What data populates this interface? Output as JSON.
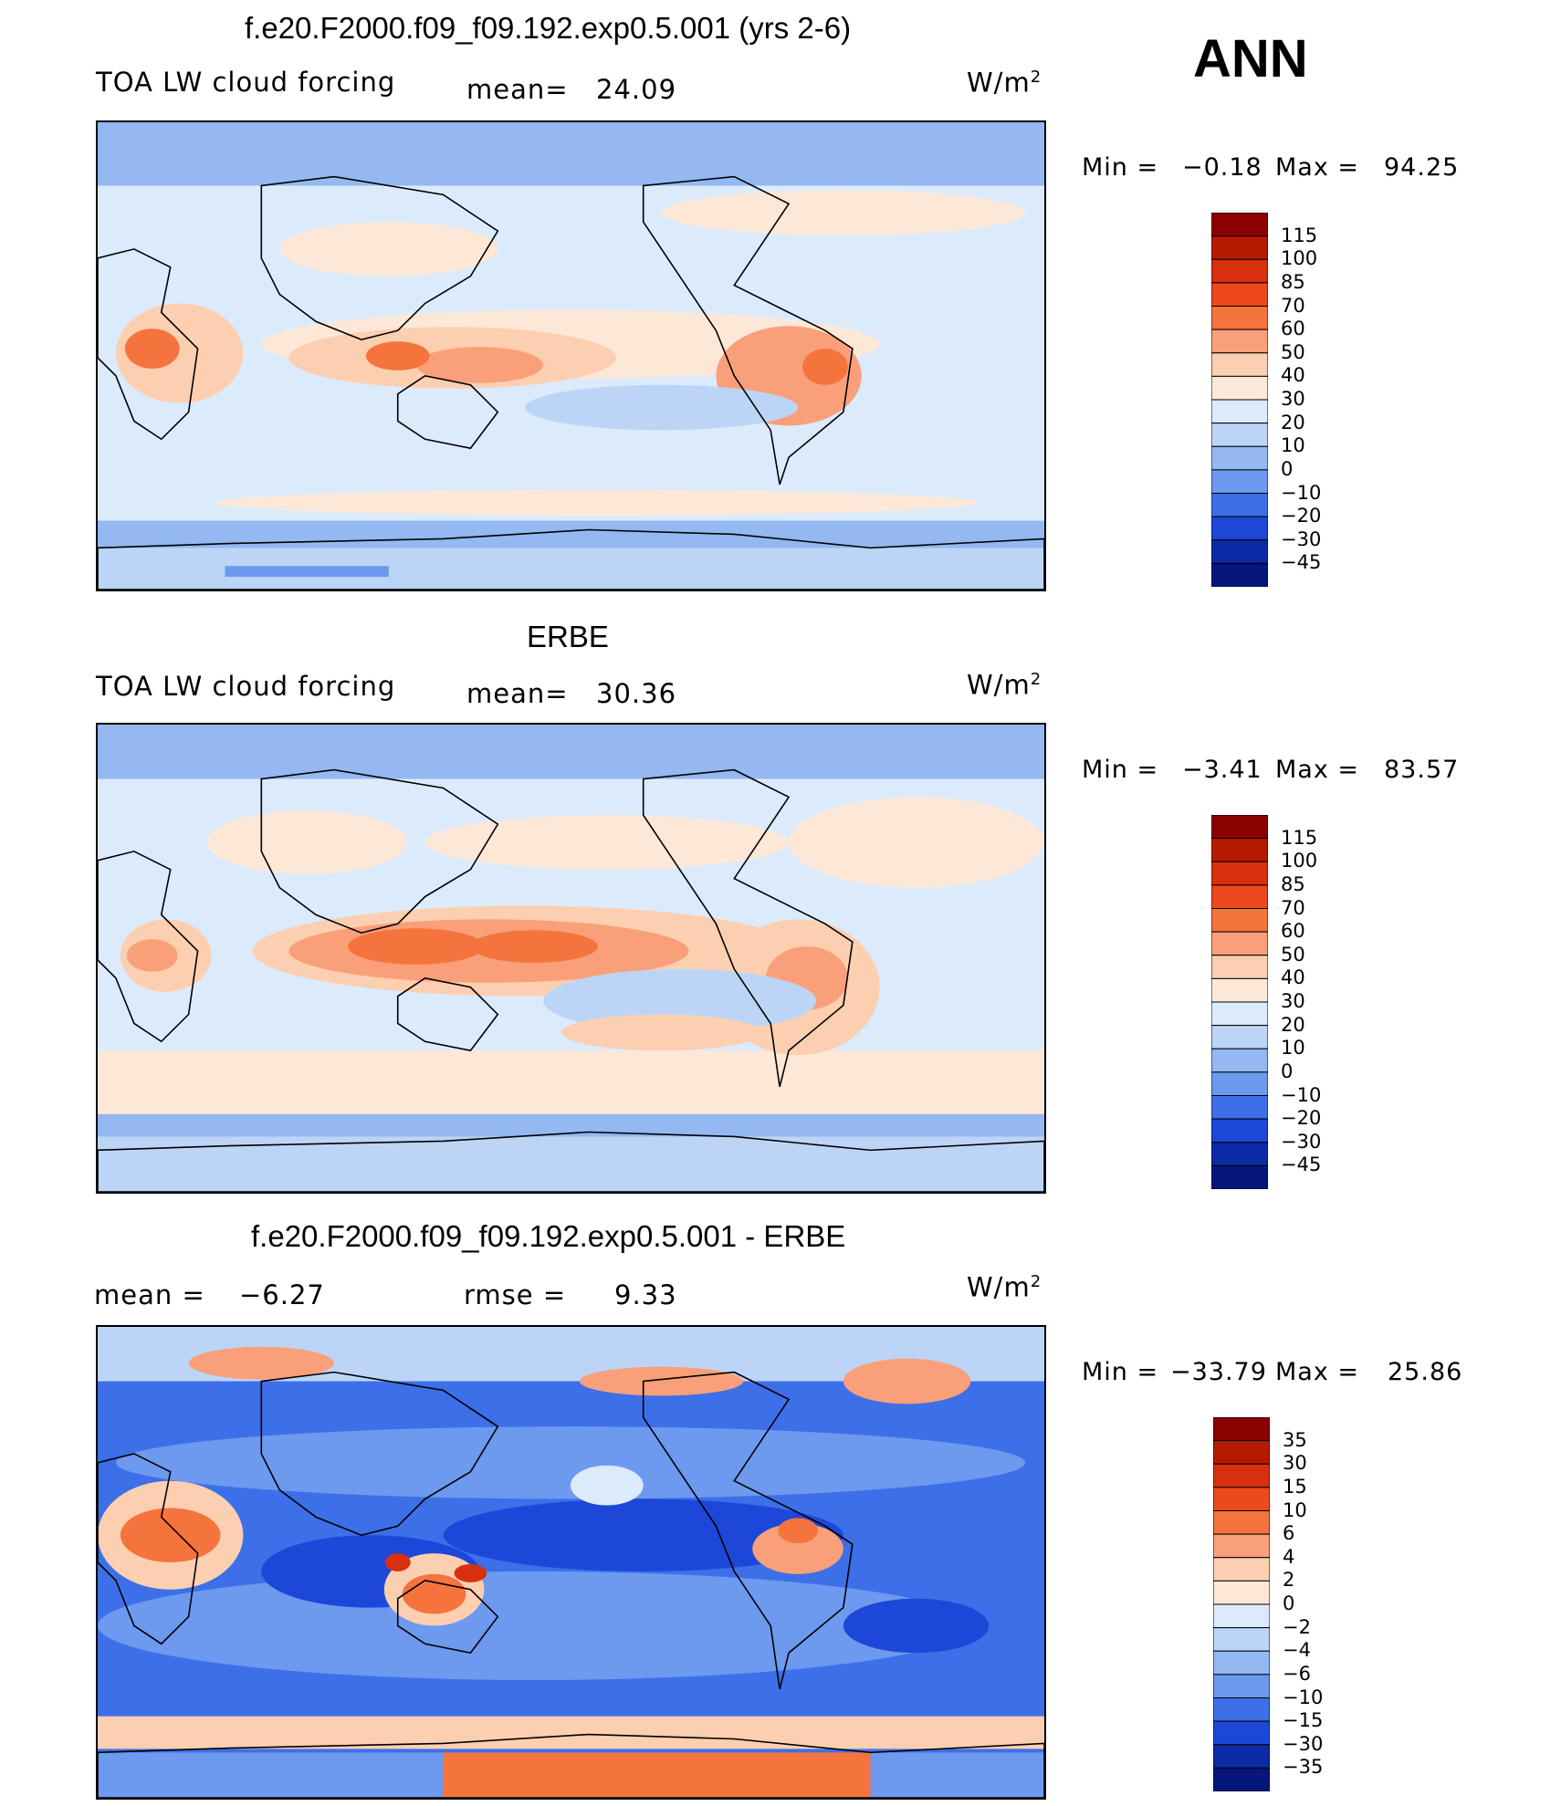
{
  "page": {
    "season": "ANN"
  },
  "chart_data": [
    {
      "type": "heatmap",
      "title": "f.e20.F2000.f09_f09.192.exp0.5.001 (yrs 2-6)",
      "left_label": "TOA LW cloud forcing",
      "stat_label": "mean=",
      "stat_value": "24.09",
      "units": "W/m",
      "units_exp": "2",
      "min_label": "Min  =",
      "min_value": "−0.18",
      "max_label": "Max  =",
      "max_value": "94.25",
      "colorbar_levels": [
        "115",
        "100",
        "85",
        "70",
        "60",
        "50",
        "40",
        "30",
        "20",
        "10",
        "0",
        "−10",
        "−20",
        "−30",
        "−45"
      ],
      "colorbar_colors": [
        "#8b0000",
        "#b51a00",
        "#d7300f",
        "#ec4a1e",
        "#f5743d",
        "#f9a07a",
        "#fccfb1",
        "#fde8d7",
        "#dcebfb",
        "#bcd5f7",
        "#93b8f2",
        "#6d99ef",
        "#3d6fe8",
        "#1c47d9",
        "#0c2aa6",
        "#06167a"
      ]
    },
    {
      "type": "heatmap",
      "title": "ERBE",
      "left_label": "TOA LW cloud forcing",
      "stat_label": "mean=",
      "stat_value": "30.36",
      "units": "W/m",
      "units_exp": "2",
      "min_label": "Min  =",
      "min_value": "−3.41",
      "max_label": "Max  =",
      "max_value": "83.57",
      "colorbar_levels": [
        "115",
        "100",
        "85",
        "70",
        "60",
        "50",
        "40",
        "30",
        "20",
        "10",
        "0",
        "−10",
        "−20",
        "−30",
        "−45"
      ],
      "colorbar_colors": [
        "#8b0000",
        "#b51a00",
        "#d7300f",
        "#ec4a1e",
        "#f5743d",
        "#f9a07a",
        "#fccfb1",
        "#fde8d7",
        "#dcebfb",
        "#bcd5f7",
        "#93b8f2",
        "#6d99ef",
        "#3d6fe8",
        "#1c47d9",
        "#0c2aa6",
        "#06167a"
      ]
    },
    {
      "type": "heatmap",
      "title": "f.e20.F2000.f09_f09.192.exp0.5.001 - ERBE",
      "mean_label": "mean  =",
      "mean_value": "−6.27",
      "rmse_label": "rmse  =",
      "rmse_value": "9.33",
      "units": "W/m",
      "units_exp": "2",
      "min_label": "Min  =",
      "min_value": "−33.79",
      "max_label": "Max  =",
      "max_value": "25.86",
      "colorbar_levels": [
        "35",
        "30",
        "15",
        "10",
        "6",
        "4",
        "2",
        "0",
        "−2",
        "−4",
        "−6",
        "−10",
        "−15",
        "−30",
        "−35"
      ],
      "colorbar_colors": [
        "#8b0000",
        "#b51a00",
        "#d7300f",
        "#ec4a1e",
        "#f5743d",
        "#f9a07a",
        "#fccfb1",
        "#fde8d7",
        "#dcebfb",
        "#bcd5f7",
        "#93b8f2",
        "#6d99ef",
        "#3d6fe8",
        "#1c47d9",
        "#0c2aa6",
        "#06167a"
      ]
    }
  ]
}
